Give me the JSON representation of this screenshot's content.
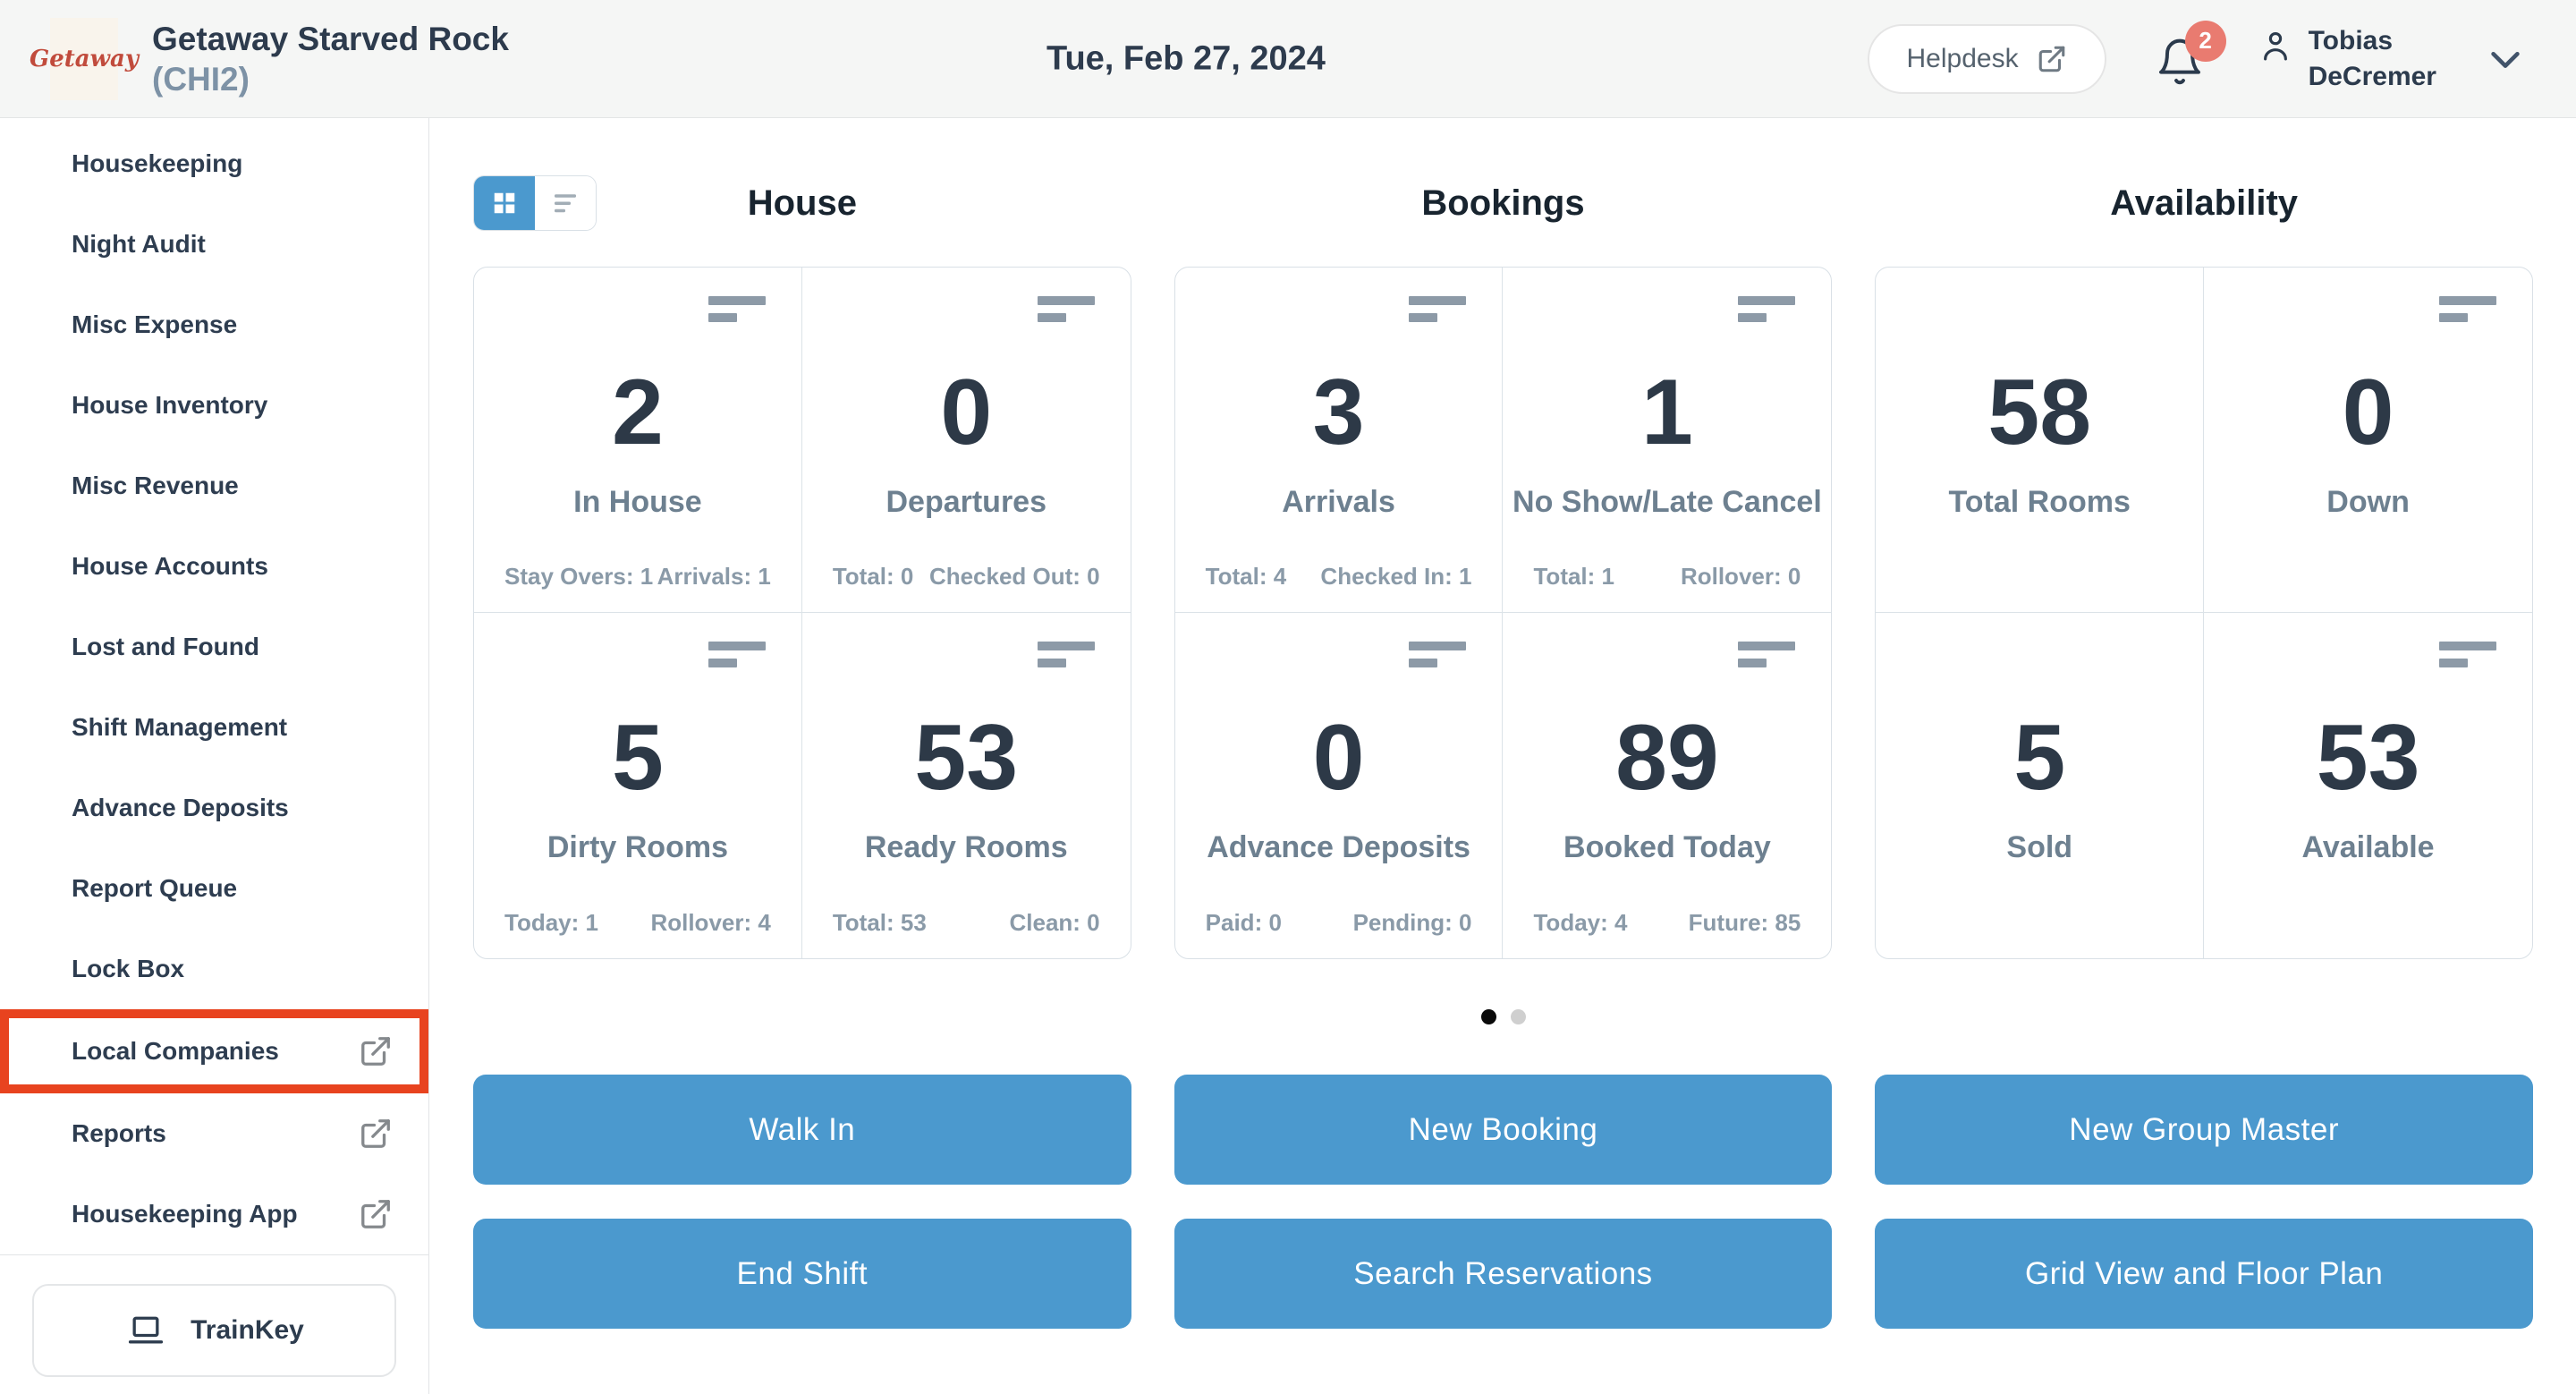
{
  "header": {
    "logo_text": "Getaway",
    "property_name": "Getaway Starved Rock",
    "property_code": "(CHI2)",
    "date": "Tue, Feb 27, 2024",
    "helpdesk_label": "Helpdesk",
    "notification_count": "2",
    "user_name_line1": "Tobias",
    "user_name_line2": "DeCremer"
  },
  "sidebar": {
    "items": [
      {
        "label": "Housekeeping",
        "external": false,
        "highlighted": false
      },
      {
        "label": "Night Audit",
        "external": false,
        "highlighted": false
      },
      {
        "label": "Misc Expense",
        "external": false,
        "highlighted": false
      },
      {
        "label": "House Inventory",
        "external": false,
        "highlighted": false
      },
      {
        "label": "Misc Revenue",
        "external": false,
        "highlighted": false
      },
      {
        "label": "House Accounts",
        "external": false,
        "highlighted": false
      },
      {
        "label": "Lost and Found",
        "external": false,
        "highlighted": false
      },
      {
        "label": "Shift Management",
        "external": false,
        "highlighted": false
      },
      {
        "label": "Advance Deposits",
        "external": false,
        "highlighted": false
      },
      {
        "label": "Report Queue",
        "external": false,
        "highlighted": false
      },
      {
        "label": "Lock Box",
        "external": false,
        "highlighted": false
      },
      {
        "label": "Local Companies",
        "external": true,
        "highlighted": true
      },
      {
        "label": "Reports",
        "external": true,
        "highlighted": false
      },
      {
        "label": "Housekeeping App",
        "external": true,
        "highlighted": false
      }
    ],
    "trainkey_label": "TrainKey"
  },
  "main": {
    "view_toggle": {
      "active": "grid",
      "options": [
        "grid",
        "list"
      ]
    },
    "sections": [
      {
        "title": "House",
        "cells": [
          {
            "value": "2",
            "label": "In House",
            "sub_left": "Stay Overs: 1",
            "sub_right": "Arrivals: 1",
            "has_icon": true
          },
          {
            "value": "0",
            "label": "Departures",
            "sub_left": "Total: 0",
            "sub_right": "Checked Out: 0",
            "has_icon": true
          },
          {
            "value": "5",
            "label": "Dirty Rooms",
            "sub_left": "Today: 1",
            "sub_right": "Rollover: 4",
            "has_icon": true
          },
          {
            "value": "53",
            "label": "Ready Rooms",
            "sub_left": "Total: 53",
            "sub_right": "Clean: 0",
            "has_icon": true
          }
        ],
        "buttons": [
          "Walk In",
          "End Shift"
        ]
      },
      {
        "title": "Bookings",
        "cells": [
          {
            "value": "3",
            "label": "Arrivals",
            "sub_left": "Total: 4",
            "sub_right": "Checked In: 1",
            "has_icon": true
          },
          {
            "value": "1",
            "label": "No Show/Late Cancel",
            "sub_left": "Total: 1",
            "sub_right": "Rollover: 0",
            "has_icon": true
          },
          {
            "value": "0",
            "label": "Advance Deposits",
            "sub_left": "Paid: 0",
            "sub_right": "Pending: 0",
            "has_icon": true
          },
          {
            "value": "89",
            "label": "Booked Today",
            "sub_left": "Today: 4",
            "sub_right": "Future: 85",
            "has_icon": true
          }
        ],
        "buttons": [
          "New Booking",
          "Search Reservations"
        ]
      },
      {
        "title": "Availability",
        "cells": [
          {
            "value": "58",
            "label": "Total Rooms",
            "has_icon": false
          },
          {
            "value": "0",
            "label": "Down",
            "has_icon": true
          },
          {
            "value": "5",
            "label": "Sold",
            "has_icon": false
          },
          {
            "value": "53",
            "label": "Available",
            "has_icon": true
          }
        ],
        "buttons": [
          "New Group Master",
          "Grid View and Floor Plan"
        ]
      }
    ],
    "pagination": {
      "total": 2,
      "active": 0
    }
  },
  "colors": {
    "accent_blue": "#4b99ce",
    "highlight_red": "#e8431f",
    "badge_red": "#e97b70",
    "header_bg": "#f5f6f5",
    "number_text": "#2d3947",
    "label_text": "#6d8090",
    "active_dot": "#0a0a0a",
    "inactive_dot": "#cfcfcf"
  }
}
